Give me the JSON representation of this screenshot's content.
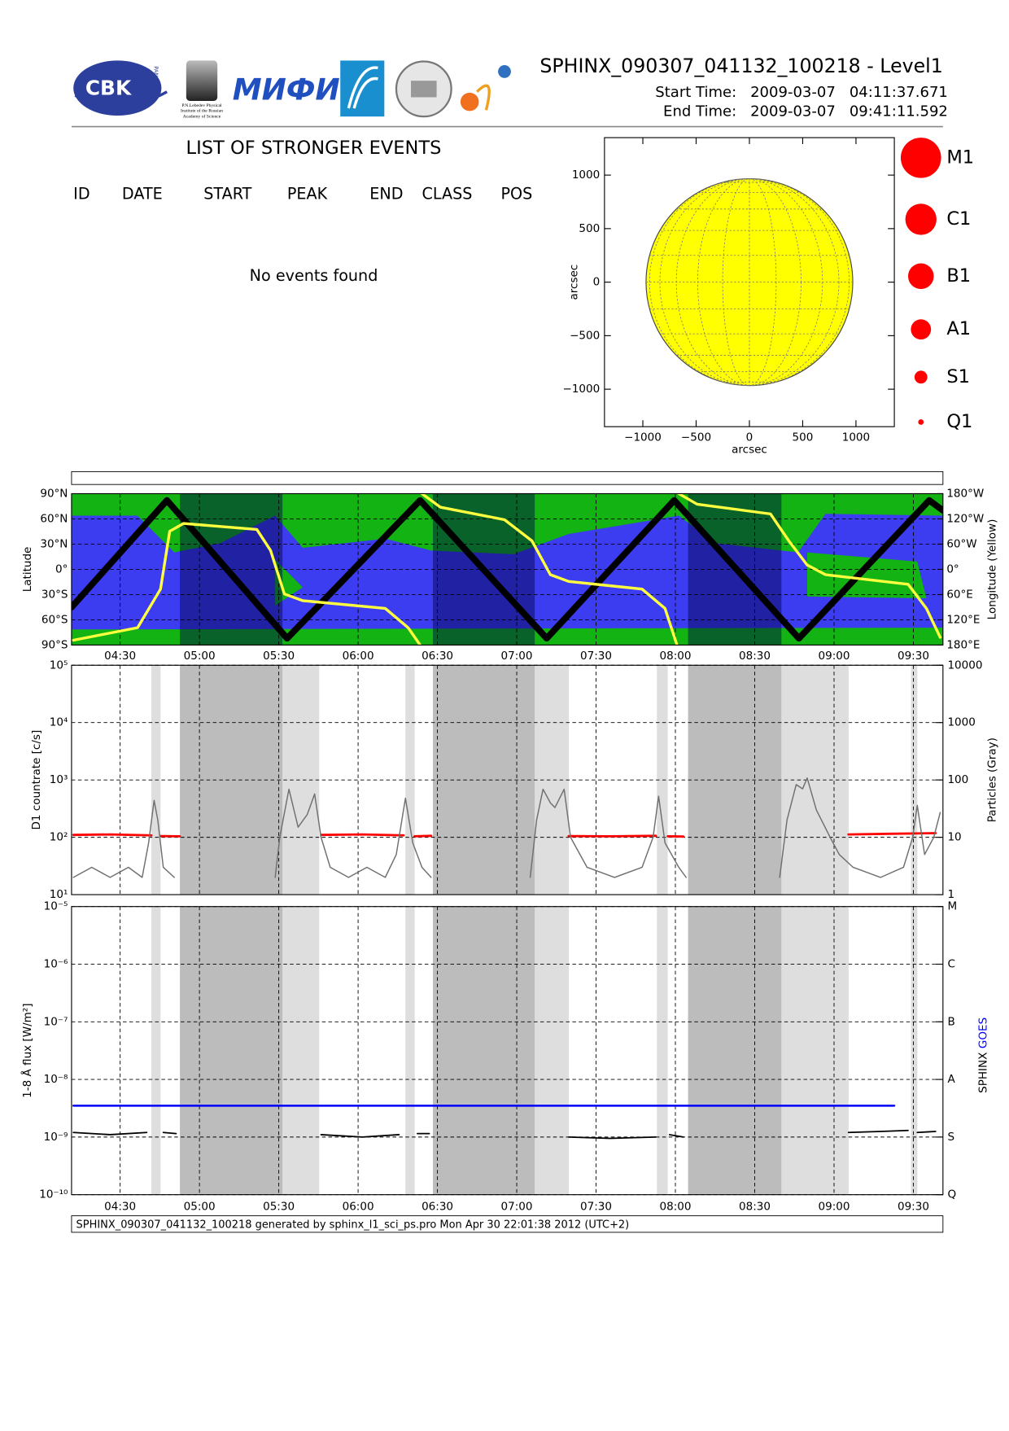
{
  "header": {
    "title": "SPHINX_090307_041132_100218 - Level1",
    "start_label": "Start Time:",
    "start_date": "2009-03-07",
    "start_time": "04:11:37.671",
    "end_label": "End Time:",
    "end_date": "2009-03-07",
    "end_time": "09:41:11.592"
  },
  "logos": {
    "cbk": "CBK",
    "pan": "PAN",
    "lebedev": [
      "P.N.Lebedev Physical",
      "Institute of the Russian",
      "Academy of Science"
    ],
    "mifi": "МИФИ"
  },
  "events": {
    "title": "LIST OF STRONGER EVENTS",
    "columns": [
      "ID",
      "DATE",
      "START",
      "PEAK",
      "END",
      "CLASS",
      "POS"
    ],
    "message": "No events found"
  },
  "footer": "SPHINX_090307_041132_100218 generated by sphinx_l1_sci_ps.pro Mon Apr 30 22:01:38 2012 (UTC+2)",
  "chart_data": [
    {
      "type": "disk",
      "xlim": [
        -1360,
        1360
      ],
      "ylim": [
        -1350,
        1350
      ],
      "xticks": [
        {
          "value": -1000,
          "label": "−1000"
        },
        {
          "value": -500,
          "label": "−500"
        },
        0,
        500,
        1000
      ],
      "yticks": [
        {
          "value": -1000,
          "label": "−1000"
        },
        {
          "value": -500,
          "label": "−500"
        },
        0,
        500,
        1000
      ],
      "xlabel": "arcsec",
      "ylabel": "arcsec",
      "solar_radius": 970,
      "color": "#ffff00",
      "size_legend": {
        "color": "#ff0000",
        "labels": [
          "M1",
          "C1",
          "B1",
          "A1",
          "S1",
          "Q1"
        ]
      }
    },
    {
      "type": "orbit",
      "xlim": [
        251.63,
        581.19
      ],
      "xticks": [
        {
          "value": 270,
          "label": "04:30"
        },
        {
          "value": 300,
          "label": "05:00"
        },
        {
          "value": 330,
          "label": "05:30"
        },
        {
          "value": 360,
          "label": "06:00"
        },
        {
          "value": 390,
          "label": "06:30"
        },
        {
          "value": 420,
          "label": "07:00"
        },
        {
          "value": 450,
          "label": "07:30"
        },
        {
          "value": 480,
          "label": "08:00"
        },
        {
          "value": 510,
          "label": "08:30"
        },
        {
          "value": 540,
          "label": "09:00"
        },
        {
          "value": 570,
          "label": "09:30"
        }
      ],
      "ylim": [
        -90,
        90
      ],
      "yticks": [
        {
          "value": -90,
          "label": "90°S"
        },
        {
          "value": -60,
          "label": "60°S"
        },
        {
          "value": -30,
          "label": "30°S"
        },
        {
          "value": 0,
          "label": "0°"
        },
        {
          "value": 30,
          "label": "30°N"
        },
        {
          "value": 60,
          "label": "60°N"
        },
        {
          "value": 90,
          "label": "90°N"
        }
      ],
      "ylabel": "Latitude",
      "y2lim": [
        -180,
        180
      ],
      "y2ticks": [
        {
          "value": -180,
          "label": "180°E"
        },
        {
          "value": -120,
          "label": "120°E"
        },
        {
          "value": -60,
          "label": "60°E"
        },
        {
          "value": 0,
          "label": "0°"
        },
        {
          "value": 60,
          "label": "60°W"
        },
        {
          "value": 120,
          "label": "120°W"
        },
        {
          "value": 180,
          "label": "180°W"
        }
      ],
      "y2label": "Longitude (Yellow)",
      "series": [
        {
          "color": "#000000",
          "x": [
            251.63,
            287.71,
            333.15,
            383.46,
            431.33,
            479.55,
            526.73,
            575.99,
            581.19
          ],
          "values": [
            -45,
            82,
            -82,
            82,
            -82,
            82,
            -82,
            82,
            70
          ]
        },
        {
          "color": "#ffff40",
          "axis": "y2",
          "x": [
            252.32,
            276.61,
            285.28,
            288.75,
            293.95,
            321.71,
            326.91,
            332.11,
            339.05,
            370.27,
            378.94,
            383.46,
            383.8,
            384.15,
            391.09,
            415.37,
            425.78,
            432.72,
            439.66,
            467.41,
            476.08,
            480.59,
            480.94,
            481.29,
            488.22,
            515.97,
            522.91,
            529.85,
            536.79,
            568.01,
            574.95,
            580.15
          ],
          "values": [
            -168.5,
            -138.7,
            -47,
            90.6,
            109,
            95,
            44.7,
            -58.5,
            -74.5,
            -92.9,
            -138.7,
            -180,
            null,
            180,
            147.9,
            118,
            67.6,
            -12.6,
            -28.7,
            -47,
            -92.9,
            -180,
            null,
            180,
            154.8,
            131.8,
            67.6,
            10.3,
            -12.6,
            -35.5,
            -92.9,
            -161.7
          ]
        }
      ],
      "night_intervals": [
        [
          292.6,
          331.4
        ],
        [
          388.3,
          426.8
        ],
        [
          484.8,
          520.1
        ]
      ]
    },
    {
      "type": "line",
      "log": true,
      "xlim": [
        251.63,
        581.19
      ],
      "ylim": [
        10,
        100000
      ],
      "yticks": [
        {
          "value": 10,
          "label": "10¹"
        },
        {
          "value": 100,
          "label": "10²"
        },
        {
          "value": 1000,
          "label": "10³"
        },
        {
          "value": 10000,
          "label": "10⁴"
        },
        {
          "value": 100000,
          "label": "10⁵"
        }
      ],
      "ylabel": "D1 countrate [c/s]",
      "y2lim": [
        1,
        10000
      ],
      "y2ticks": [
        1,
        10,
        100,
        1000,
        10000
      ],
      "y2label": "Particles (Gray)",
      "grid": true,
      "particle_intervals": [
        [
          281.8,
          285.3
        ],
        [
          331.4,
          345.3
        ],
        [
          377.9,
          381.4
        ],
        [
          426.8,
          439.7
        ],
        [
          473.0,
          477.1
        ],
        [
          520.1,
          545.5
        ],
        [
          569.1,
          571.5
        ]
      ],
      "series": [
        {
          "color": "#ff0000",
          "x": [
            252.32,
            266.2,
            281.81,
            283.55,
            285.28,
            292.56,
            318.24,
            345.99,
            361.6,
            377.21,
            379.29,
            381.37,
            387.62,
            413.64,
            439.66,
            455.27,
            472.61,
            475.04,
            477.12,
            483.02,
            514.25,
            545.46,
            561.07,
            578.42
          ],
          "values": [
            110,
            112,
            108,
            null,
            105,
            104,
            null,
            110,
            112,
            108,
            null,
            104,
            106,
            null,
            105,
            104,
            106,
            null,
            104,
            103,
            null,
            112,
            115,
            118
          ]
        },
        {
          "color": "#707070",
          "axis": "y2",
          "x": [
            252.32,
            259.26,
            266.2,
            273.14,
            278.34,
            280.77,
            282.85,
            284.24,
            286.32,
            290.48,
            310,
            328.64,
            330.38,
            333.85,
            337.32,
            340.79,
            343.56,
            345.99,
            349.46,
            356.4,
            363.33,
            370.27,
            374.44,
            377.91,
            380.68,
            384.15,
            387.62,
            389.35,
            425.09,
            427.51,
            429.94,
            432.72,
            434.45,
            437.92,
            440.35,
            446.59,
            457.0,
            467.41,
            471.57,
            473.65,
            476.08,
            481.28,
            484.06,
            502.1,
            519.44,
            522.22,
            525.69,
            528.12,
            529.85,
            533.32,
            538.53,
            542.0,
            547.2,
            557.6,
            566.28,
            569.75,
            571.48,
            574.26,
            577.73,
            580.15
          ],
          "values": [
            2,
            3,
            2,
            3,
            2,
            8,
            44,
            20,
            3,
            2,
            null,
            2,
            10,
            69,
            15,
            25,
            57,
            10,
            3,
            2,
            3,
            2,
            5,
            48,
            8,
            3,
            2,
            null,
            2,
            20,
            69,
            40,
            33,
            69,
            10,
            3,
            2,
            3,
            10,
            52,
            8,
            3,
            2,
            null,
            2,
            20,
            83,
            70,
            108,
            30,
            10,
            5,
            3,
            2,
            3,
            10,
            36,
            5,
            10,
            27
          ]
        }
      ]
    },
    {
      "type": "line",
      "log": true,
      "xlim": [
        251.63,
        581.19
      ],
      "xticks": [
        {
          "value": 270,
          "label": "04:30"
        },
        {
          "value": 300,
          "label": "05:00"
        },
        {
          "value": 330,
          "label": "05:30"
        },
        {
          "value": 360,
          "label": "06:00"
        },
        {
          "value": 390,
          "label": "06:30"
        },
        {
          "value": 420,
          "label": "07:00"
        },
        {
          "value": 450,
          "label": "07:30"
        },
        {
          "value": 480,
          "label": "08:00"
        },
        {
          "value": 510,
          "label": "08:30"
        },
        {
          "value": 540,
          "label": "09:00"
        },
        {
          "value": 570,
          "label": "09:30"
        }
      ],
      "ylim": [
        1e-10,
        1e-05
      ],
      "yticks": [
        {
          "value": 1e-10,
          "label": "10⁻¹⁰"
        },
        {
          "value": 1e-09,
          "label": "10⁻⁹"
        },
        {
          "value": 1e-08,
          "label": "10⁻⁸"
        },
        {
          "value": 1e-07,
          "label": "10⁻⁷"
        },
        {
          "value": 1e-06,
          "label": "10⁻⁶"
        },
        {
          "value": 1e-05,
          "label": "10⁻⁵"
        }
      ],
      "ylabel": "1-8 Å flux [W/m²]",
      "y2ticks": [
        {
          "value": 1e-10,
          "label": "Q"
        },
        {
          "value": 1e-09,
          "label": "S"
        },
        {
          "value": 1e-08,
          "label": "A"
        },
        {
          "value": 1e-07,
          "label": "B"
        },
        {
          "value": 1e-06,
          "label": "C"
        },
        {
          "value": 1e-05,
          "label": "M"
        }
      ],
      "grid": true,
      "series": [
        {
          "name": "SPHINX",
          "color": "#000000",
          "x": [
            252.32,
            266.2,
            280.08,
            283.55,
            286.32,
            291.18,
            318.24,
            345.99,
            361.6,
            375.48,
            378.94,
            382.41,
            386.92,
            413.64,
            439.66,
            455.27,
            472.61,
            475.04,
            477.81,
            483.02,
            514.25,
            545.46,
            557.6,
            568.01,
            569.75,
            571.48,
            578.42
          ],
          "values": [
            1.2e-09,
            1.1e-09,
            1.2e-09,
            null,
            1.2e-09,
            1.15e-09,
            null,
            1.1e-09,
            1e-09,
            1.1e-09,
            null,
            1.15e-09,
            1.15e-09,
            null,
            1e-09,
            9.5e-10,
            1e-09,
            null,
            1.1e-09,
            1e-09,
            null,
            1.2e-09,
            1.25e-09,
            1.3e-09,
            null,
            1.2e-09,
            1.25e-09
          ]
        },
        {
          "name": "GOES",
          "color": "#0000ff",
          "x": [
            252.32,
            562.81
          ],
          "values": [
            3.5e-09,
            3.5e-09
          ]
        }
      ]
    }
  ]
}
